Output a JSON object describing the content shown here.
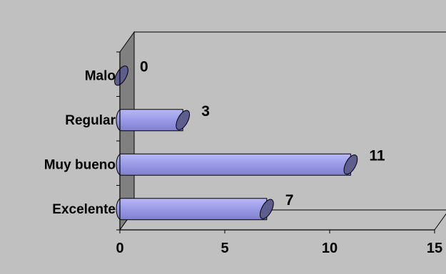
{
  "chart_data": {
    "type": "bar",
    "orientation": "horizontal",
    "style": "3d-cylinder",
    "categories": [
      "Malo",
      "Regular",
      "Muy bueno",
      "Excelente"
    ],
    "values": [
      0,
      3,
      11,
      7
    ],
    "x_ticks": [
      "0",
      "5",
      "10",
      "15"
    ],
    "xlim": [
      0,
      15
    ],
    "title": "",
    "xlabel": "",
    "ylabel": "",
    "grid": false,
    "legend": "none",
    "colors": {
      "background": "#c0c0c0",
      "bar_fill": "#9c9ce9",
      "bar_cap": "#5d5d8e",
      "side_wall": "#808080",
      "back_wall": "#c0c0c0",
      "axis": "#000000"
    }
  }
}
